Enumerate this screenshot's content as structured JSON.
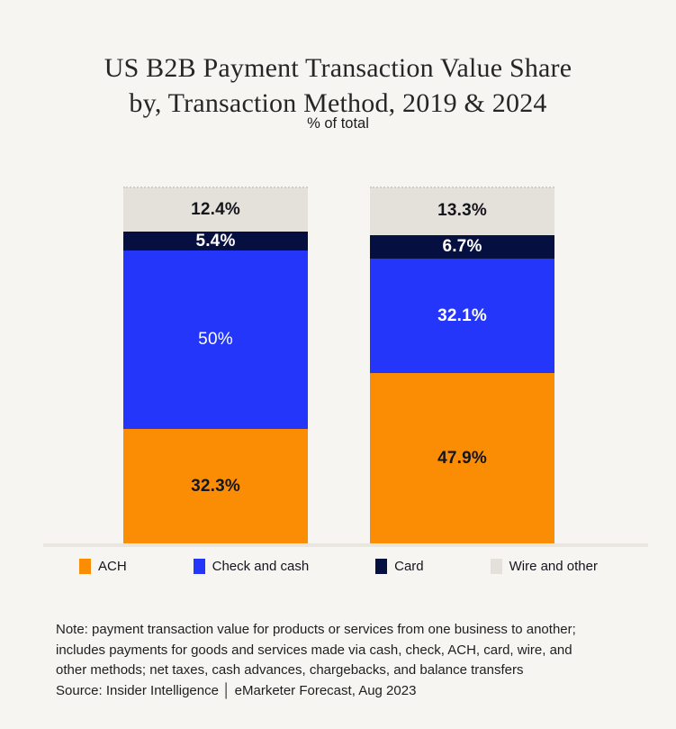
{
  "header": {
    "title_line1": "US B2B Payment Transaction Value Share",
    "title_line2": "by, Transaction Method, 2019 & 2024",
    "subtitle": "% of total"
  },
  "chart_data": {
    "type": "bar",
    "variant": "stacked-vertical",
    "title": "US B2B Payment Transaction Value Share by, Transaction Method, 2019 & 2024",
    "unit_label": "% of total",
    "categories": [
      "2019",
      "2024"
    ],
    "category_axis_labels_visible": false,
    "ylim": [
      0,
      100
    ],
    "grid": false,
    "legend_position": "bottom",
    "stack_order_bottom_to_top": [
      "ACH",
      "Check and cash",
      "Card",
      "Wire and other"
    ],
    "series": [
      {
        "name": "ACH",
        "color": "#fb8d05",
        "text_color": "#15151c",
        "values": [
          32.3,
          47.9
        ],
        "labels": [
          "32.3%",
          "47.9%"
        ],
        "label_weights": [
          700,
          700
        ]
      },
      {
        "name": "Check and cash",
        "color": "#2336fa",
        "text_color": "#ffffff",
        "values": [
          50,
          32.1
        ],
        "labels": [
          "50%",
          "32.1%"
        ],
        "label_weights": [
          400,
          700
        ]
      },
      {
        "name": "Card",
        "color": "#061040",
        "text_color": "#ffffff",
        "values": [
          5.4,
          6.7
        ],
        "labels": [
          "5.4%",
          "6.7%"
        ],
        "label_weights": [
          700,
          700
        ]
      },
      {
        "name": "Wire and other",
        "color": "#e3e1da",
        "text_color": "#15151c",
        "values": [
          12.4,
          13.3
        ],
        "labels": [
          "12.4%",
          "13.3%"
        ],
        "label_weights": [
          700,
          700
        ]
      }
    ]
  },
  "footer": {
    "note_lines": [
      "Note: payment transaction value for products or services from one business to another;",
      "includes payments for goods and services made via cash, check, ACH, card, wire, and",
      "other methods; net taxes, cash advances, chargebacks, and balance transfers"
    ],
    "source": "Source: Insider Intelligence │ eMarketer Forecast, Aug 2023"
  },
  "colors": {
    "background": "#f6f5f2",
    "axis_line": "#e8e6df",
    "title_text": "#262626",
    "body_text": "#1e1e1e"
  }
}
